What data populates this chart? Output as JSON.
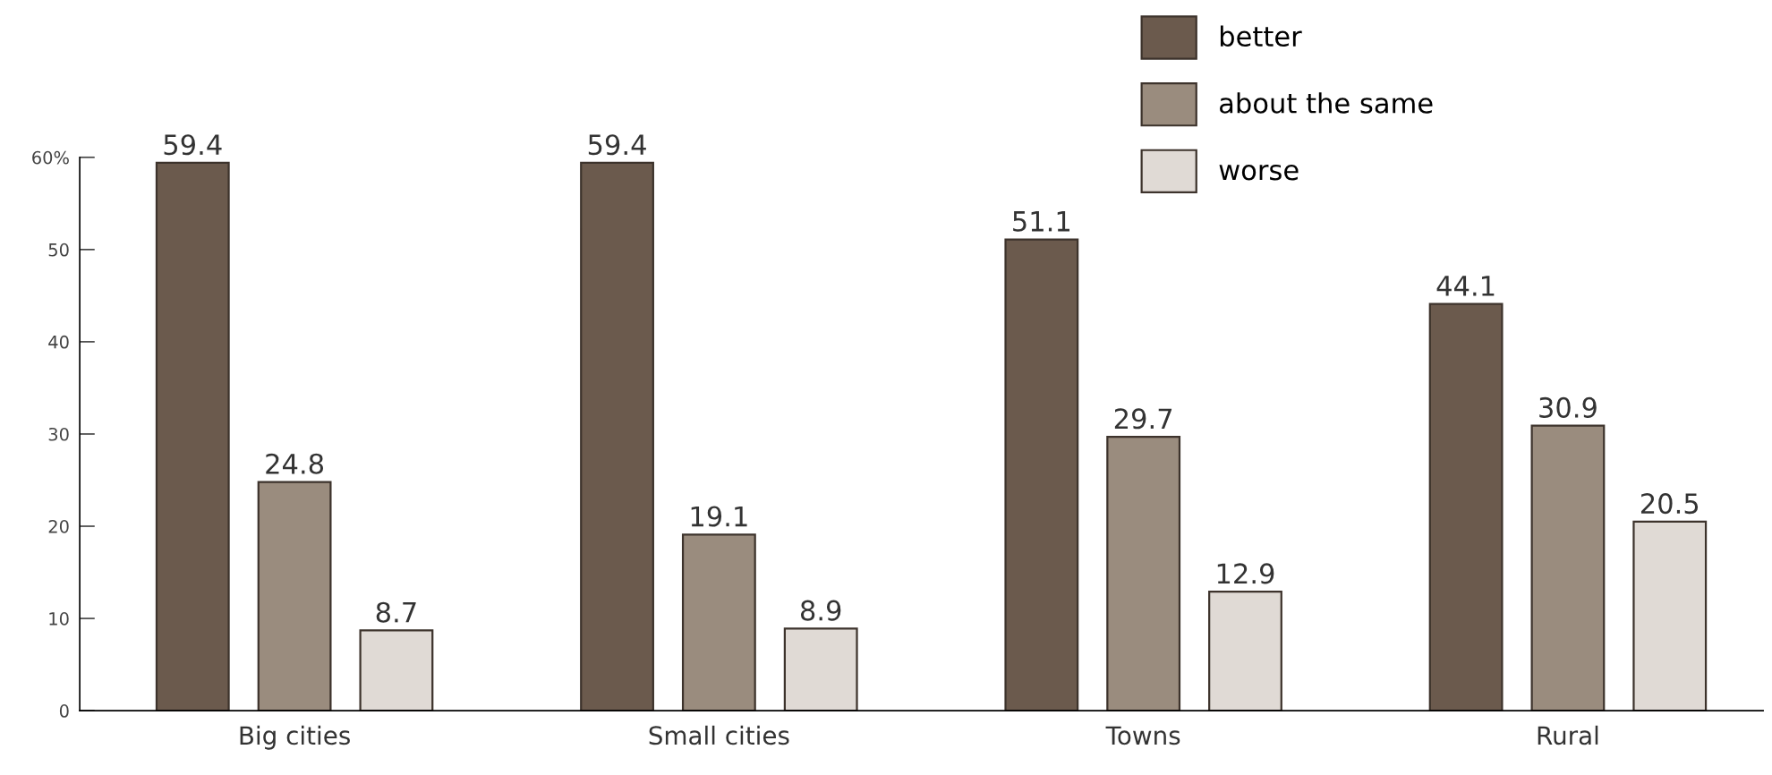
{
  "chart_data": {
    "type": "bar",
    "categories": [
      "Big cities",
      "Small cities",
      "Towns",
      "Rural"
    ],
    "series": [
      {
        "name": "better",
        "color": "#6b5a4d",
        "values": [
          59.4,
          59.4,
          51.1,
          44.1
        ]
      },
      {
        "name": "about the same",
        "color": "#9a8c7e",
        "values": [
          24.8,
          19.1,
          29.7,
          30.9
        ]
      },
      {
        "name": "worse",
        "color": "#e0dad5",
        "values": [
          8.7,
          8.9,
          12.9,
          20.5
        ]
      }
    ],
    "ylim": [
      0,
      60
    ],
    "yticks": [
      0,
      10,
      20,
      30,
      40,
      50,
      {
        "value": 60,
        "label": "60%"
      }
    ],
    "data_labels": true,
    "grid": false,
    "legend": "top right"
  }
}
